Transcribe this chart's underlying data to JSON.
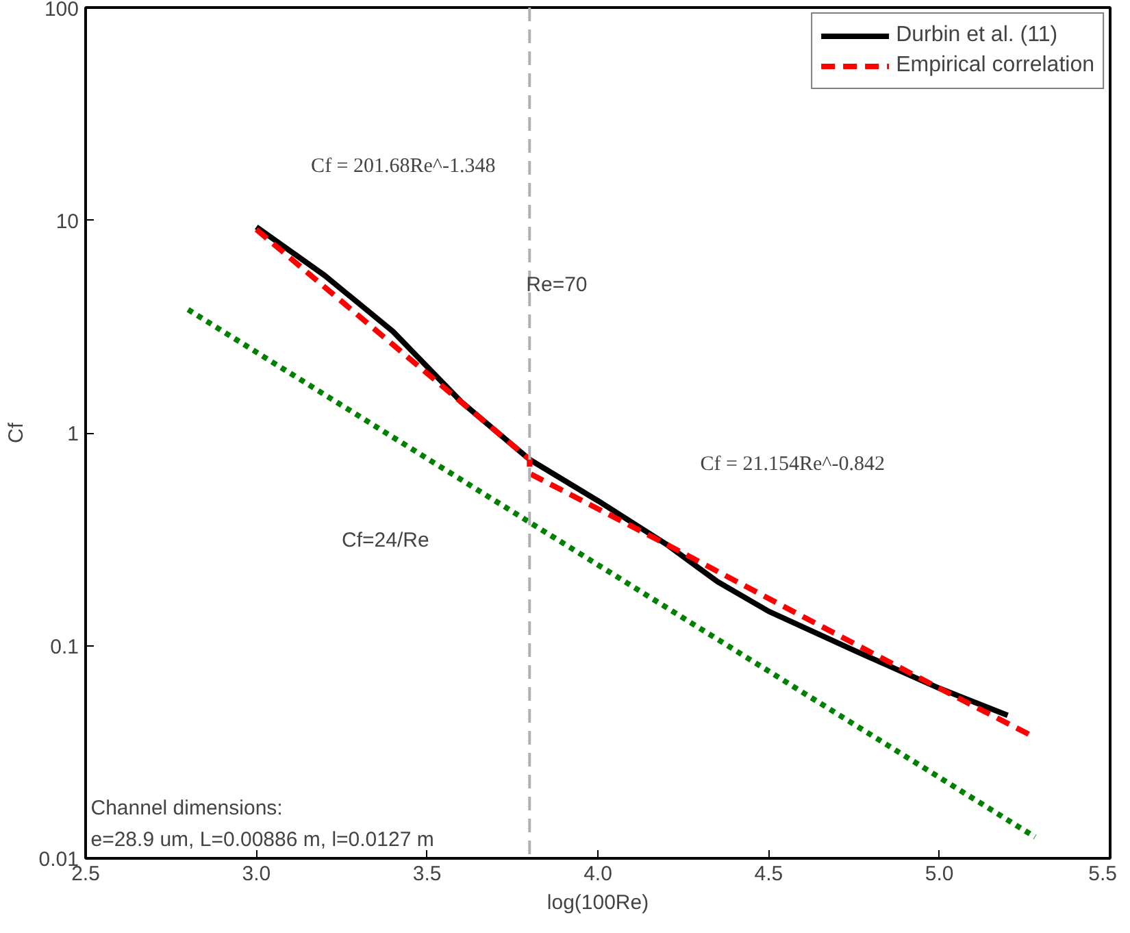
{
  "chart_data": {
    "type": "line",
    "xlabel": "log(100Re)",
    "ylabel": "Cf",
    "log": "y",
    "grid": false,
    "legend": "top right",
    "xlim": [
      2.5,
      5.5
    ],
    "ylim": [
      0.01,
      100
    ],
    "xticks": [
      2.5,
      {
        "value": 3,
        "label": "3.0"
      },
      3.5,
      {
        "value": 4,
        "label": "4.0"
      },
      4.5,
      {
        "value": 5,
        "label": "5.0"
      },
      5.5
    ],
    "yticks": [
      0.01,
      0.1,
      1,
      10,
      100
    ],
    "series": [
      {
        "name": "Durbin et al. (11)",
        "color": "#000000",
        "line_style": "solid",
        "x": [
          3.0,
          3.2,
          3.4,
          3.6,
          3.8,
          4.0,
          4.2,
          4.35,
          4.5,
          4.75,
          5.0,
          5.2
        ],
        "values": [
          9.3,
          5.5,
          3.0,
          1.4,
          0.75,
          0.48,
          0.3,
          0.2,
          0.145,
          0.095,
          0.063,
          0.047
        ]
      },
      {
        "name": "Empirical correlation",
        "color": "#ff0000",
        "line_style": "dashed",
        "x": [
          3.0,
          3.4,
          3.8,
          3.8,
          4.2,
          4.6,
          5.0,
          5.28
        ],
        "values": [
          9.05,
          2.6,
          0.75,
          0.645,
          0.3,
          0.137,
          0.063,
          0.037
        ]
      },
      {
        "color": "#008000",
        "line_style": "dotted",
        "x": [
          2.8,
          5.28
        ],
        "values": [
          3.8,
          0.0126
        ]
      }
    ],
    "ref_lines": [
      {
        "axis": "x",
        "value": 3.8,
        "color": "#b0b0b0",
        "line_style": "dashed"
      }
    ],
    "annotations": [
      "Cf = 201.68Re^-1.348",
      "Cf = 21.154Re^-0.842",
      "Cf=24/Re",
      "Re=70",
      "Channel dimensions:",
      "e=28.9 um, L=0.00886 m, l=0.0127 m"
    ]
  }
}
